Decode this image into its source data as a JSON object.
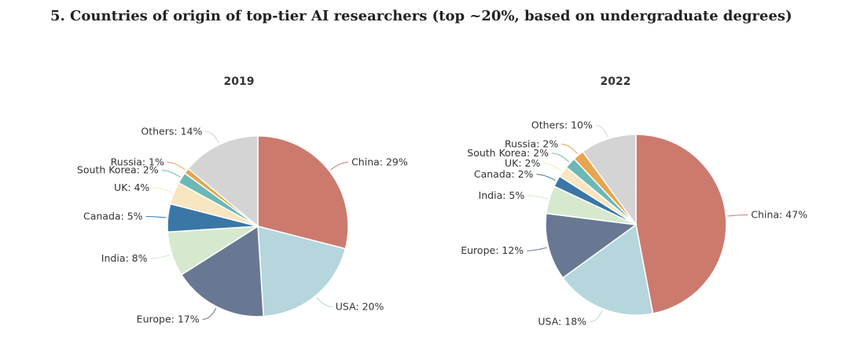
{
  "page": {
    "title": "5. Countries of origin of top-tier AI researchers (top ~20%, based on undergraduate degrees)"
  },
  "chart_data": [
    {
      "type": "pie",
      "title": "2019",
      "slices": [
        {
          "label": "China",
          "value": 29,
          "color": "#cc7a6e",
          "label_text": "China: 29%"
        },
        {
          "label": "USA",
          "value": 20,
          "color": "#b5d6dd",
          "label_text": "USA: 20%"
        },
        {
          "label": "Europe",
          "value": 17,
          "color": "#687892",
          "label_text": "Europe: 17%"
        },
        {
          "label": "India",
          "value": 8,
          "color": "#d6e9cf",
          "label_text": "India: 8%"
        },
        {
          "label": "Canada",
          "value": 5,
          "color": "#3a76a6",
          "label_text": "Canada: 5%"
        },
        {
          "label": "UK",
          "value": 4,
          "color": "#f8e6c0",
          "label_text": "UK: 4%"
        },
        {
          "label": "South Korea",
          "value": 2,
          "color": "#6cb8b4",
          "label_text": "South Korea: 2%"
        },
        {
          "label": "Russia",
          "value": 1,
          "color": "#e8a44e",
          "label_text": "Russia: 1%"
        },
        {
          "label": "Others",
          "value": 14,
          "color": "#d4d4d4",
          "label_text": "Others: 14%"
        }
      ]
    },
    {
      "type": "pie",
      "title": "2022",
      "slices": [
        {
          "label": "China",
          "value": 47,
          "color": "#cc7a6e",
          "label_text": "China: 47%"
        },
        {
          "label": "USA",
          "value": 18,
          "color": "#b5d6dd",
          "label_text": "USA: 18%"
        },
        {
          "label": "Europe",
          "value": 12,
          "color": "#687892",
          "label_text": "Europe: 12%"
        },
        {
          "label": "India",
          "value": 5,
          "color": "#d6e9cf",
          "label_text": "India: 5%"
        },
        {
          "label": "Canada",
          "value": 2,
          "color": "#3a76a6",
          "label_text": "Canada: 2%"
        },
        {
          "label": "UK",
          "value": 2,
          "color": "#f8e6c0",
          "label_text": "UK: 2%"
        },
        {
          "label": "South Korea",
          "value": 2,
          "color": "#6cb8b4",
          "label_text": "South Korea: 2%"
        },
        {
          "label": "Russia",
          "value": 2,
          "color": "#e8a44e",
          "label_text": "Russia: 2%"
        },
        {
          "label": "Others",
          "value": 10,
          "color": "#d4d4d4",
          "label_text": "Others: 10%"
        }
      ]
    }
  ]
}
